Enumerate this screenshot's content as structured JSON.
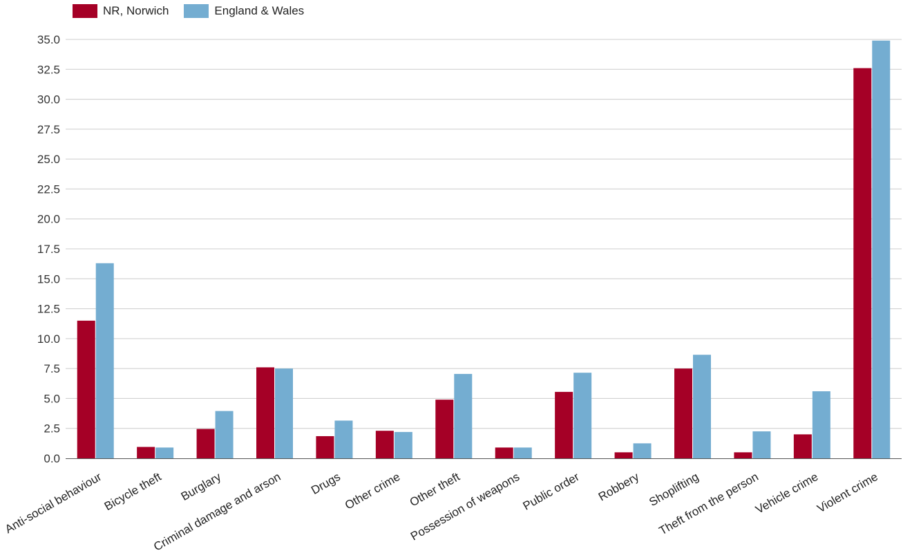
{
  "chart_data": {
    "type": "bar",
    "categories": [
      "Anti-social behaviour",
      "Bicycle theft",
      "Burglary",
      "Criminal damage and arson",
      "Drugs",
      "Other crime",
      "Other theft",
      "Possession of weapons",
      "Public order",
      "Robbery",
      "Shoplifting",
      "Theft from the person",
      "Vehicle crime",
      "Violent crime"
    ],
    "series": [
      {
        "name": "NR, Norwich",
        "color": "#a50026",
        "values": [
          11.5,
          0.95,
          2.45,
          7.6,
          1.85,
          2.3,
          4.9,
          0.9,
          5.55,
          0.5,
          7.5,
          0.5,
          2.0,
          32.6
        ]
      },
      {
        "name": "England & Wales",
        "color": "#74add1",
        "values": [
          16.3,
          0.9,
          3.95,
          7.5,
          3.15,
          2.2,
          7.05,
          0.9,
          7.15,
          1.25,
          8.65,
          2.25,
          5.6,
          34.9
        ]
      }
    ],
    "ylim": [
      0,
      35
    ],
    "yticks": [
      "0.0",
      "2.5",
      "5.0",
      "7.5",
      "10.0",
      "12.5",
      "15.0",
      "17.5",
      "20.0",
      "22.5",
      "25.0",
      "27.5",
      "30.0",
      "32.5",
      "35.0"
    ],
    "grid": true,
    "legend_position": "top-left"
  }
}
